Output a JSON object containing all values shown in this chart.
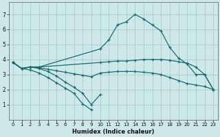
{
  "xlabel": "Humidex (Indice chaleur)",
  "bg_color": "#cce8e8",
  "grid_color": "#aacccc",
  "line_color": "#1a6b6b",
  "xlim": [
    -0.5,
    23.5
  ],
  "ylim": [
    0,
    7.8
  ],
  "xticks": [
    0,
    1,
    2,
    3,
    4,
    5,
    6,
    7,
    8,
    9,
    10,
    11,
    12,
    13,
    14,
    15,
    16,
    17,
    18,
    19,
    20,
    21,
    22,
    23
  ],
  "yticks": [
    1,
    2,
    3,
    4,
    5,
    6,
    7
  ],
  "lines": [
    {
      "x": [
        0,
        1,
        2,
        3,
        10,
        11,
        12,
        13,
        14,
        15,
        16,
        17,
        18,
        19,
        20,
        21,
        22,
        23
      ],
      "y": [
        3.8,
        3.4,
        3.5,
        3.5,
        4.7,
        5.3,
        6.3,
        6.5,
        7.0,
        6.7,
        6.3,
        5.9,
        4.8,
        4.1,
        3.7,
        3.0,
        3.0,
        2.0
      ]
    },
    {
      "x": [
        0,
        1,
        2,
        3,
        10,
        11,
        12,
        13,
        14,
        15,
        16,
        17,
        18,
        19,
        20,
        21,
        22,
        23
      ],
      "y": [
        3.8,
        3.4,
        3.5,
        3.5,
        3.8,
        3.85,
        3.9,
        3.9,
        3.95,
        4.0,
        4.0,
        4.0,
        3.95,
        3.85,
        3.75,
        3.5,
        3.0,
        2.0
      ]
    },
    {
      "x": [
        0,
        1,
        2,
        3,
        4,
        5,
        6,
        7,
        8,
        9,
        10,
        11,
        12,
        13,
        14,
        15,
        16,
        17,
        18,
        19,
        20,
        21,
        22,
        23
      ],
      "y": [
        3.8,
        3.4,
        3.5,
        3.45,
        3.35,
        3.25,
        3.15,
        3.05,
        2.95,
        2.85,
        3.1,
        3.15,
        3.2,
        3.2,
        3.2,
        3.15,
        3.1,
        3.0,
        2.8,
        2.6,
        2.4,
        2.3,
        2.2,
        2.0
      ]
    },
    {
      "x": [
        0,
        1,
        2,
        3,
        4,
        5,
        6,
        7,
        8,
        9,
        10
      ],
      "y": [
        3.8,
        3.4,
        3.5,
        3.4,
        3.2,
        2.9,
        2.5,
        2.15,
        1.75,
        1.0,
        1.65
      ]
    },
    {
      "x": [
        0,
        1,
        2,
        3,
        4,
        5,
        6,
        7,
        8,
        9
      ],
      "y": [
        3.8,
        3.4,
        3.3,
        3.1,
        2.8,
        2.45,
        2.1,
        1.75,
        1.05,
        0.65
      ]
    }
  ]
}
